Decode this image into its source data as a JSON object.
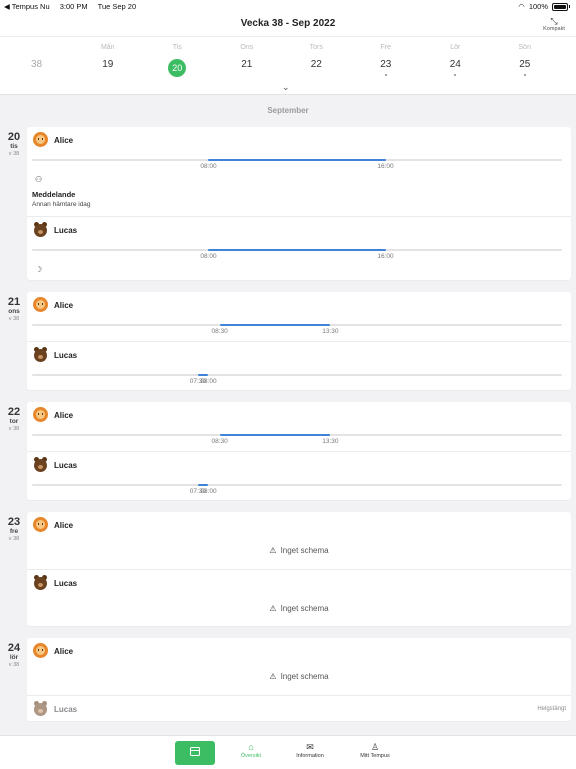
{
  "status_bar": {
    "back_app": "◀ Tempus Nu",
    "time": "3:00 PM",
    "date": "Tue Sep 20",
    "battery": "100%"
  },
  "header": {
    "title": "Vecka 38 - Sep 2022",
    "compact_label": "Kompakt"
  },
  "week_days": [
    {
      "name": "",
      "number": "38",
      "style": "past",
      "dot": false
    },
    {
      "name": "Mån",
      "number": "19",
      "style": "normal",
      "dot": false
    },
    {
      "name": "Tis",
      "number": "20",
      "style": "selected",
      "dot": false
    },
    {
      "name": "Ons",
      "number": "21",
      "style": "normal",
      "dot": false
    },
    {
      "name": "Tors",
      "number": "22",
      "style": "normal",
      "dot": false
    },
    {
      "name": "Fre",
      "number": "23",
      "style": "normal",
      "dot": true
    },
    {
      "name": "Lör",
      "number": "24",
      "style": "normal",
      "dot": true
    },
    {
      "name": "Sön",
      "number": "25",
      "style": "normal",
      "dot": true
    }
  ],
  "month_label": "September",
  "schedule": [
    {
      "day": "20",
      "weekday": "tis",
      "week": "v 38",
      "children": [
        {
          "name": "Alice",
          "avatar": "lion",
          "start": "08:00",
          "end": "16:00",
          "start_frac": 0.333,
          "end_frac": 0.667,
          "message": {
            "title": "Meddelande",
            "text": "Annan hämtare idag"
          }
        },
        {
          "name": "Lucas",
          "avatar": "bear",
          "start": "08:00",
          "end": "16:00",
          "start_frac": 0.333,
          "end_frac": 0.667,
          "night": true
        }
      ]
    },
    {
      "day": "21",
      "weekday": "ons",
      "week": "v 38",
      "children": [
        {
          "name": "Alice",
          "avatar": "lion",
          "start": "08:30",
          "end": "13:30",
          "start_frac": 0.354,
          "end_frac": 0.563
        },
        {
          "name": "Lucas",
          "avatar": "bear",
          "start": "07:30",
          "end": "08:00",
          "start_frac": 0.313,
          "end_frac": 0.333
        }
      ]
    },
    {
      "day": "22",
      "weekday": "tor",
      "week": "v 38",
      "children": [
        {
          "name": "Alice",
          "avatar": "lion",
          "start": "08:30",
          "end": "13:30",
          "start_frac": 0.354,
          "end_frac": 0.563
        },
        {
          "name": "Lucas",
          "avatar": "bear",
          "start": "07:30",
          "end": "08:00",
          "start_frac": 0.313,
          "end_frac": 0.333
        }
      ]
    },
    {
      "day": "23",
      "weekday": "fre",
      "week": "v 38",
      "children": [
        {
          "name": "Alice",
          "avatar": "lion",
          "no_schedule": "Inget schema"
        },
        {
          "name": "Lucas",
          "avatar": "bear",
          "no_schedule": "Inget schema"
        }
      ]
    },
    {
      "day": "24",
      "weekday": "lör",
      "week": "v 38",
      "children": [
        {
          "name": "Alice",
          "avatar": "lion",
          "no_schedule": "Inget schema"
        },
        {
          "name": "Lucas",
          "avatar": "bear",
          "closed": "Helgstängt"
        }
      ]
    }
  ],
  "tabbar": {
    "tabs": [
      {
        "label": "Översikt",
        "icon": "home-icon",
        "active": true
      },
      {
        "label": "Information",
        "icon": "inbox-icon",
        "active": false
      },
      {
        "label": "Mitt Tempus",
        "icon": "person-icon",
        "active": false
      }
    ]
  }
}
